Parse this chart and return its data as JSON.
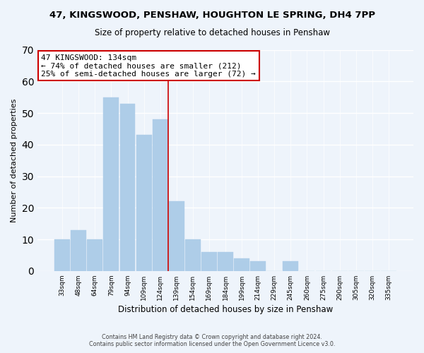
{
  "title": "47, KINGSWOOD, PENSHAW, HOUGHTON LE SPRING, DH4 7PP",
  "subtitle": "Size of property relative to detached houses in Penshaw",
  "xlabel": "Distribution of detached houses by size in Penshaw",
  "ylabel": "Number of detached properties",
  "bar_labels": [
    "33sqm",
    "48sqm",
    "64sqm",
    "79sqm",
    "94sqm",
    "109sqm",
    "124sqm",
    "139sqm",
    "154sqm",
    "169sqm",
    "184sqm",
    "199sqm",
    "214sqm",
    "229sqm",
    "245sqm",
    "260sqm",
    "275sqm",
    "290sqm",
    "305sqm",
    "320sqm",
    "335sqm"
  ],
  "bar_values": [
    10,
    13,
    10,
    55,
    53,
    43,
    48,
    22,
    10,
    6,
    6,
    4,
    3,
    0,
    3,
    0,
    0,
    0,
    0,
    0,
    0
  ],
  "bar_color": "#aecde8",
  "bar_edge_color": "#aecde8",
  "vline_color": "#cc0000",
  "annotation_title": "47 KINGSWOOD: 134sqm",
  "annotation_line1": "← 74% of detached houses are smaller (212)",
  "annotation_line2": "25% of semi-detached houses are larger (72) →",
  "annotation_box_color": "#ffffff",
  "annotation_box_edge": "#cc0000",
  "ylim": [
    0,
    70
  ],
  "yticks": [
    0,
    10,
    20,
    30,
    40,
    50,
    60,
    70
  ],
  "footer_line1": "Contains HM Land Registry data © Crown copyright and database right 2024.",
  "footer_line2": "Contains public sector information licensed under the Open Government Licence v3.0.",
  "bg_color": "#eef4fb"
}
